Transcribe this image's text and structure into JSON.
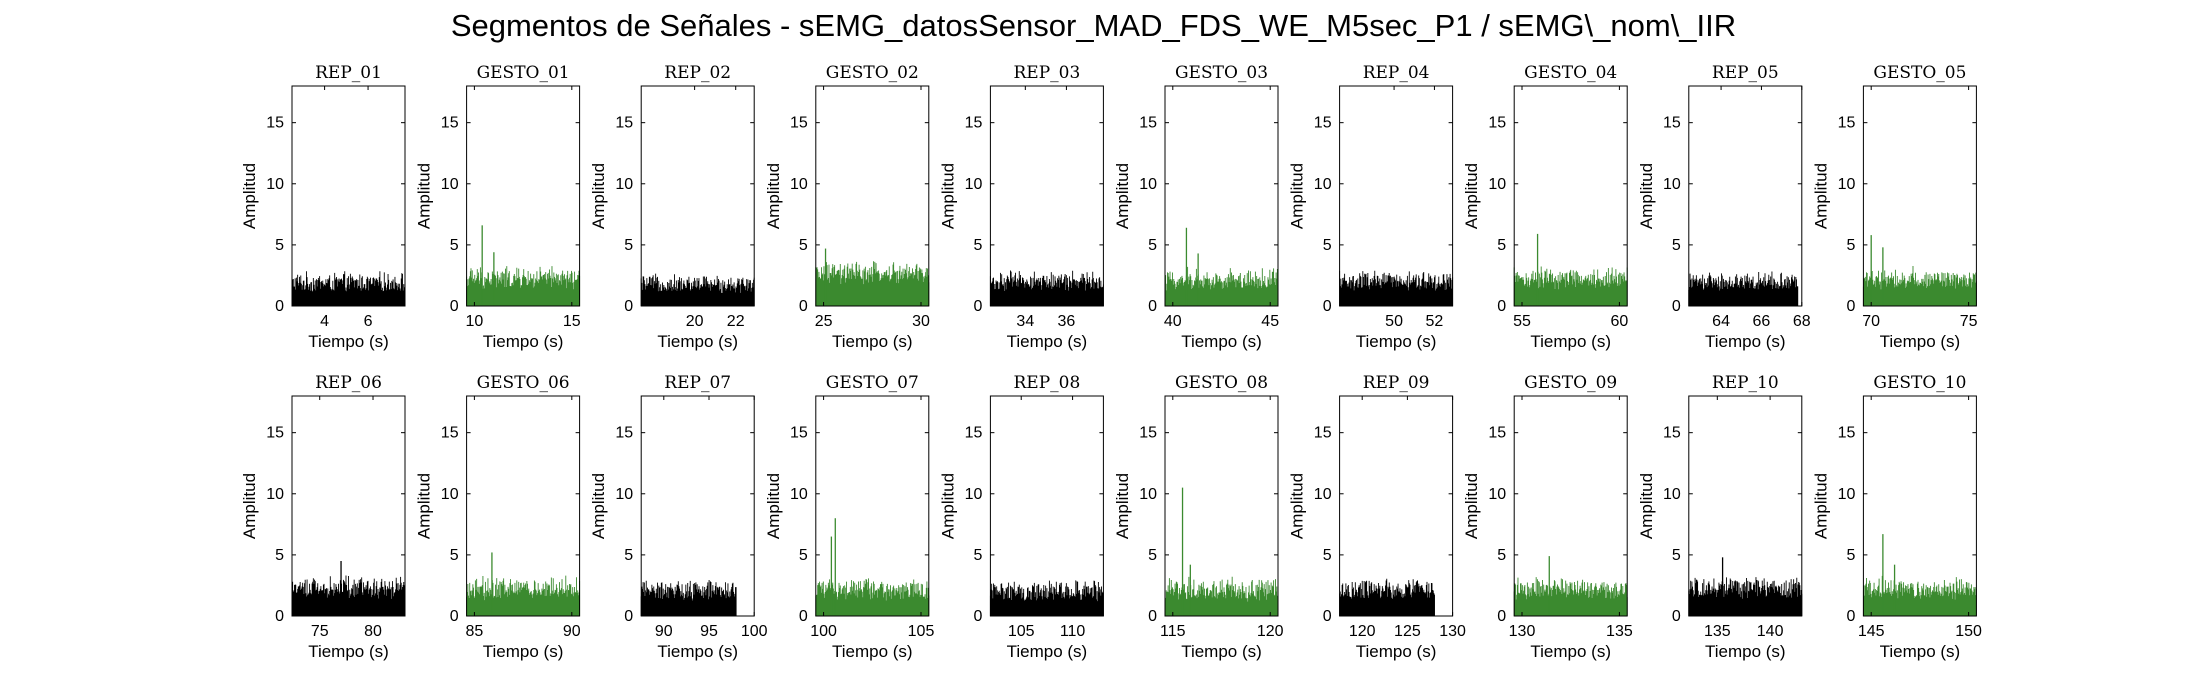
{
  "figure": {
    "title": "Segmentos de Señales - sEMG_datosSensor_MAD_FDS_WE_M5sec_P1 / sEMG\\_nom\\_IIR"
  },
  "colors": {
    "rep": "#000000",
    "gesto": "#3b8a2f",
    "axis": "#000000"
  },
  "chart_data": [
    {
      "type": "bar",
      "title": "REP_01",
      "xlabel": "Tiempo (s)",
      "ylabel": "Amplitud",
      "xlim": [
        2.5,
        7.7
      ],
      "xticks": [
        4,
        6
      ],
      "ylim": [
        0,
        18
      ],
      "yticks": [
        0,
        5,
        10,
        15
      ],
      "data_xrange": [
        2.5,
        7.7
      ],
      "baseline": 1.7,
      "noise": 1.4,
      "peaks": [],
      "series_class": "rep"
    },
    {
      "type": "bar",
      "title": "GESTO_01",
      "xlabel": "Tiempo (s)",
      "ylabel": "Amplitud",
      "xlim": [
        9.6,
        15.4
      ],
      "xticks": [
        10,
        15
      ],
      "ylim": [
        0,
        18
      ],
      "yticks": [
        0,
        5,
        10,
        15
      ],
      "data_xrange": [
        9.6,
        15.4
      ],
      "baseline": 2.0,
      "noise": 1.6,
      "peaks": [
        {
          "x": 10.4,
          "y": 6.6
        },
        {
          "x": 11.0,
          "y": 4.4
        }
      ],
      "series_class": "gesto"
    },
    {
      "type": "bar",
      "title": "REP_02",
      "xlabel": "Tiempo (s)",
      "ylabel": "Amplitud",
      "xlim": [
        17.4,
        22.9
      ],
      "xticks": [
        20,
        22
      ],
      "ylim": [
        0,
        18
      ],
      "yticks": [
        0,
        5,
        10,
        15
      ],
      "data_xrange": [
        17.4,
        22.9
      ],
      "baseline": 1.6,
      "noise": 1.3,
      "peaks": [],
      "series_class": "rep"
    },
    {
      "type": "bar",
      "title": "GESTO_02",
      "xlabel": "Tiempo (s)",
      "ylabel": "Amplitud",
      "xlim": [
        24.6,
        30.4
      ],
      "xticks": [
        25,
        30
      ],
      "ylim": [
        0,
        18
      ],
      "yticks": [
        0,
        5,
        10,
        15
      ],
      "data_xrange": [
        24.6,
        30.4
      ],
      "baseline": 2.4,
      "noise": 1.6,
      "peaks": [
        {
          "x": 25.1,
          "y": 4.7
        }
      ],
      "series_class": "gesto"
    },
    {
      "type": "bar",
      "title": "REP_03",
      "xlabel": "Tiempo (s)",
      "ylabel": "Amplitud",
      "xlim": [
        32.3,
        37.8
      ],
      "xticks": [
        34,
        36
      ],
      "ylim": [
        0,
        18
      ],
      "yticks": [
        0,
        5,
        10,
        15
      ],
      "data_xrange": [
        32.3,
        37.8
      ],
      "baseline": 1.8,
      "noise": 1.4,
      "peaks": [],
      "series_class": "rep"
    },
    {
      "type": "bar",
      "title": "GESTO_03",
      "xlabel": "Tiempo (s)",
      "ylabel": "Amplitud",
      "xlim": [
        39.6,
        45.4
      ],
      "xticks": [
        40,
        45
      ],
      "ylim": [
        0,
        18
      ],
      "yticks": [
        0,
        5,
        10,
        15
      ],
      "data_xrange": [
        39.6,
        45.4
      ],
      "baseline": 1.9,
      "noise": 1.6,
      "peaks": [
        {
          "x": 40.7,
          "y": 6.4
        },
        {
          "x": 41.3,
          "y": 4.3
        }
      ],
      "series_class": "gesto"
    },
    {
      "type": "bar",
      "title": "REP_04",
      "xlabel": "Tiempo (s)",
      "ylabel": "Amplitud",
      "xlim": [
        47.3,
        52.9
      ],
      "xticks": [
        50,
        52
      ],
      "ylim": [
        0,
        18
      ],
      "yticks": [
        0,
        5,
        10,
        15
      ],
      "data_xrange": [
        47.3,
        52.9
      ],
      "baseline": 1.8,
      "noise": 1.4,
      "peaks": [],
      "series_class": "rep"
    },
    {
      "type": "bar",
      "title": "GESTO_04",
      "xlabel": "Tiempo (s)",
      "ylabel": "Amplitud",
      "xlim": [
        54.6,
        60.4
      ],
      "xticks": [
        55,
        60
      ],
      "ylim": [
        0,
        18
      ],
      "yticks": [
        0,
        5,
        10,
        15
      ],
      "data_xrange": [
        54.6,
        60.4
      ],
      "baseline": 2.0,
      "noise": 1.6,
      "peaks": [
        {
          "x": 55.8,
          "y": 5.9
        }
      ],
      "series_class": "gesto"
    },
    {
      "type": "bar",
      "title": "REP_05",
      "xlabel": "Tiempo (s)",
      "ylabel": "Amplitud",
      "xlim": [
        62.4,
        68
      ],
      "xticks": [
        64,
        66,
        68
      ],
      "ylim": [
        0,
        18
      ],
      "yticks": [
        0,
        5,
        10,
        15
      ],
      "data_xrange": [
        62.4,
        67.8
      ],
      "baseline": 1.8,
      "noise": 1.4,
      "peaks": [],
      "series_class": "rep"
    },
    {
      "type": "bar",
      "title": "GESTO_05",
      "xlabel": "Tiempo (s)",
      "ylabel": "Amplitud",
      "xlim": [
        69.6,
        75.4
      ],
      "xticks": [
        70,
        75
      ],
      "ylim": [
        0,
        18
      ],
      "yticks": [
        0,
        5,
        10,
        15
      ],
      "data_xrange": [
        69.6,
        75.4
      ],
      "baseline": 2.0,
      "noise": 1.6,
      "peaks": [
        {
          "x": 70.0,
          "y": 5.8
        },
        {
          "x": 70.6,
          "y": 4.8
        }
      ],
      "series_class": "gesto"
    },
    {
      "type": "bar",
      "title": "REP_06",
      "xlabel": "Tiempo (s)",
      "ylabel": "Amplitud",
      "xlim": [
        72.4,
        83
      ],
      "xticks": [
        75,
        80
      ],
      "ylim": [
        0,
        18
      ],
      "yticks": [
        0,
        5,
        10,
        15
      ],
      "data_xrange": [
        72.4,
        83
      ],
      "baseline": 2.1,
      "noise": 1.6,
      "peaks": [
        {
          "x": 77.0,
          "y": 4.5
        }
      ],
      "series_class": "rep"
    },
    {
      "type": "bar",
      "title": "GESTO_06",
      "xlabel": "Tiempo (s)",
      "ylabel": "Amplitud",
      "xlim": [
        84.6,
        90.4
      ],
      "xticks": [
        85,
        90
      ],
      "ylim": [
        0,
        18
      ],
      "yticks": [
        0,
        5,
        10,
        15
      ],
      "data_xrange": [
        84.6,
        90.4
      ],
      "baseline": 2.0,
      "noise": 1.6,
      "peaks": [
        {
          "x": 85.9,
          "y": 5.2
        }
      ],
      "series_class": "gesto"
    },
    {
      "type": "bar",
      "title": "REP_07",
      "xlabel": "Tiempo (s)",
      "ylabel": "Amplitud",
      "xlim": [
        87.5,
        100
      ],
      "xticks": [
        90,
        95,
        100
      ],
      "ylim": [
        0,
        18
      ],
      "yticks": [
        0,
        5,
        10,
        15
      ],
      "data_xrange": [
        87.5,
        98
      ],
      "baseline": 1.9,
      "noise": 1.4,
      "peaks": [],
      "series_class": "rep"
    },
    {
      "type": "bar",
      "title": "GESTO_07",
      "xlabel": "Tiempo (s)",
      "ylabel": "Amplitud",
      "xlim": [
        99.6,
        105.4
      ],
      "xticks": [
        100,
        105
      ],
      "ylim": [
        0,
        18
      ],
      "yticks": [
        0,
        5,
        10,
        15
      ],
      "data_xrange": [
        99.6,
        105.4
      ],
      "baseline": 1.9,
      "noise": 1.6,
      "peaks": [
        {
          "x": 100.6,
          "y": 8.0
        },
        {
          "x": 100.4,
          "y": 6.5
        }
      ],
      "series_class": "gesto"
    },
    {
      "type": "bar",
      "title": "REP_08",
      "xlabel": "Tiempo (s)",
      "ylabel": "Amplitud",
      "xlim": [
        102,
        113
      ],
      "xticks": [
        105,
        110
      ],
      "ylim": [
        0,
        18
      ],
      "yticks": [
        0,
        5,
        10,
        15
      ],
      "data_xrange": [
        102,
        113
      ],
      "baseline": 1.8,
      "noise": 1.5,
      "peaks": [],
      "series_class": "rep"
    },
    {
      "type": "bar",
      "title": "GESTO_08",
      "xlabel": "Tiempo (s)",
      "ylabel": "Amplitud",
      "xlim": [
        114.6,
        120.4
      ],
      "xticks": [
        115,
        120
      ],
      "ylim": [
        0,
        18
      ],
      "yticks": [
        0,
        5,
        10,
        15
      ],
      "data_xrange": [
        114.6,
        120.4
      ],
      "baseline": 1.9,
      "noise": 1.6,
      "peaks": [
        {
          "x": 115.5,
          "y": 10.5
        },
        {
          "x": 115.9,
          "y": 4.2
        }
      ],
      "series_class": "gesto"
    },
    {
      "type": "bar",
      "title": "REP_09",
      "xlabel": "Tiempo (s)",
      "ylabel": "Amplitud",
      "xlim": [
        117.5,
        130
      ],
      "xticks": [
        120,
        125,
        130
      ],
      "ylim": [
        0,
        18
      ],
      "yticks": [
        0,
        5,
        10,
        15
      ],
      "data_xrange": [
        117.5,
        128
      ],
      "baseline": 1.9,
      "noise": 1.4,
      "peaks": [],
      "series_class": "rep"
    },
    {
      "type": "bar",
      "title": "GESTO_09",
      "xlabel": "Tiempo (s)",
      "ylabel": "Amplitud",
      "xlim": [
        129.6,
        135.4
      ],
      "xticks": [
        130,
        135
      ],
      "ylim": [
        0,
        18
      ],
      "yticks": [
        0,
        5,
        10,
        15
      ],
      "data_xrange": [
        129.6,
        135.4
      ],
      "baseline": 2.0,
      "noise": 1.6,
      "peaks": [
        {
          "x": 131.4,
          "y": 4.9
        }
      ],
      "series_class": "gesto"
    },
    {
      "type": "bar",
      "title": "REP_10",
      "xlabel": "Tiempo (s)",
      "ylabel": "Amplitud",
      "xlim": [
        132.3,
        143
      ],
      "xticks": [
        135,
        140
      ],
      "ylim": [
        0,
        18
      ],
      "yticks": [
        0,
        5,
        10,
        15
      ],
      "data_xrange": [
        132.3,
        143
      ],
      "baseline": 2.0,
      "noise": 1.6,
      "peaks": [
        {
          "x": 135.5,
          "y": 4.8
        }
      ],
      "series_class": "rep"
    },
    {
      "type": "bar",
      "title": "GESTO_10",
      "xlabel": "Tiempo (s)",
      "ylabel": "Amplitud",
      "xlim": [
        144.6,
        150.4
      ],
      "xticks": [
        145,
        150
      ],
      "ylim": [
        0,
        18
      ],
      "yticks": [
        0,
        5,
        10,
        15
      ],
      "data_xrange": [
        144.6,
        150.4
      ],
      "baseline": 2.0,
      "noise": 1.6,
      "peaks": [
        {
          "x": 145.6,
          "y": 6.7
        },
        {
          "x": 146.2,
          "y": 4.2
        }
      ],
      "series_class": "gesto"
    }
  ]
}
